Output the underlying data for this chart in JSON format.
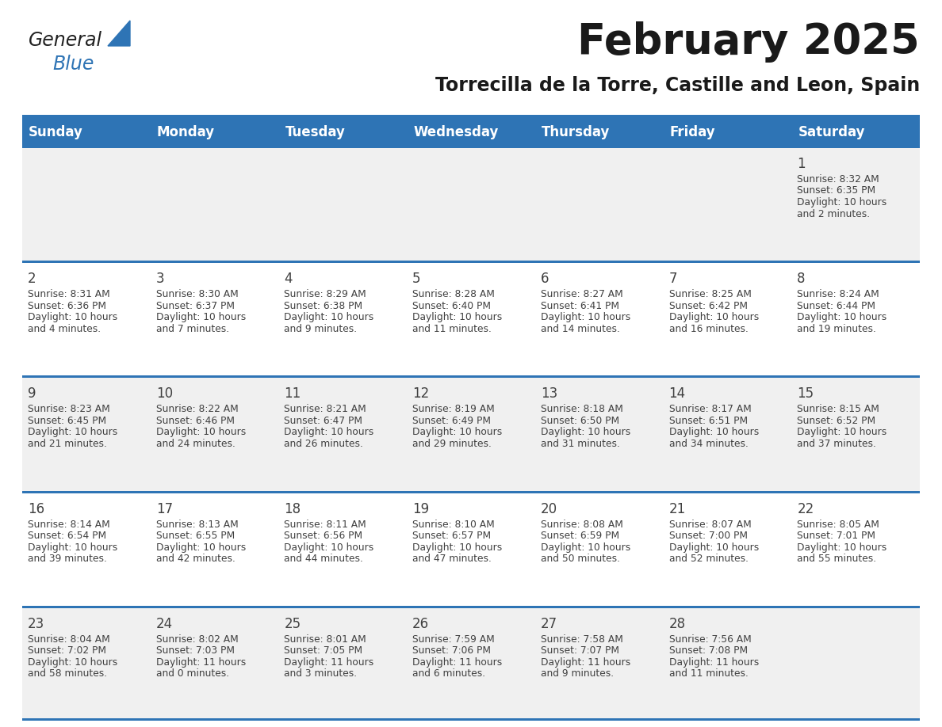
{
  "title": "February 2025",
  "subtitle": "Torrecilla de la Torre, Castille and Leon, Spain",
  "header_bg": "#2E74B5",
  "header_text_color": "#FFFFFF",
  "cell_bg_white": "#FFFFFF",
  "cell_bg_gray": "#F0F0F0",
  "separator_color": "#2E74B5",
  "text_color": "#404040",
  "days_of_week": [
    "Sunday",
    "Monday",
    "Tuesday",
    "Wednesday",
    "Thursday",
    "Friday",
    "Saturday"
  ],
  "row_bg": [
    "#F0F0F0",
    "#FFFFFF",
    "#F0F0F0",
    "#FFFFFF",
    "#F0F0F0"
  ],
  "calendar_data": [
    [
      {
        "day": "",
        "sunrise": "",
        "sunset": "",
        "daylight": ""
      },
      {
        "day": "",
        "sunrise": "",
        "sunset": "",
        "daylight": ""
      },
      {
        "day": "",
        "sunrise": "",
        "sunset": "",
        "daylight": ""
      },
      {
        "day": "",
        "sunrise": "",
        "sunset": "",
        "daylight": ""
      },
      {
        "day": "",
        "sunrise": "",
        "sunset": "",
        "daylight": ""
      },
      {
        "day": "",
        "sunrise": "",
        "sunset": "",
        "daylight": ""
      },
      {
        "day": "1",
        "sunrise": "8:32 AM",
        "sunset": "6:35 PM",
        "daylight": "10 hours\nand 2 minutes."
      }
    ],
    [
      {
        "day": "2",
        "sunrise": "8:31 AM",
        "sunset": "6:36 PM",
        "daylight": "10 hours\nand 4 minutes."
      },
      {
        "day": "3",
        "sunrise": "8:30 AM",
        "sunset": "6:37 PM",
        "daylight": "10 hours\nand 7 minutes."
      },
      {
        "day": "4",
        "sunrise": "8:29 AM",
        "sunset": "6:38 PM",
        "daylight": "10 hours\nand 9 minutes."
      },
      {
        "day": "5",
        "sunrise": "8:28 AM",
        "sunset": "6:40 PM",
        "daylight": "10 hours\nand 11 minutes."
      },
      {
        "day": "6",
        "sunrise": "8:27 AM",
        "sunset": "6:41 PM",
        "daylight": "10 hours\nand 14 minutes."
      },
      {
        "day": "7",
        "sunrise": "8:25 AM",
        "sunset": "6:42 PM",
        "daylight": "10 hours\nand 16 minutes."
      },
      {
        "day": "8",
        "sunrise": "8:24 AM",
        "sunset": "6:44 PM",
        "daylight": "10 hours\nand 19 minutes."
      }
    ],
    [
      {
        "day": "9",
        "sunrise": "8:23 AM",
        "sunset": "6:45 PM",
        "daylight": "10 hours\nand 21 minutes."
      },
      {
        "day": "10",
        "sunrise": "8:22 AM",
        "sunset": "6:46 PM",
        "daylight": "10 hours\nand 24 minutes."
      },
      {
        "day": "11",
        "sunrise": "8:21 AM",
        "sunset": "6:47 PM",
        "daylight": "10 hours\nand 26 minutes."
      },
      {
        "day": "12",
        "sunrise": "8:19 AM",
        "sunset": "6:49 PM",
        "daylight": "10 hours\nand 29 minutes."
      },
      {
        "day": "13",
        "sunrise": "8:18 AM",
        "sunset": "6:50 PM",
        "daylight": "10 hours\nand 31 minutes."
      },
      {
        "day": "14",
        "sunrise": "8:17 AM",
        "sunset": "6:51 PM",
        "daylight": "10 hours\nand 34 minutes."
      },
      {
        "day": "15",
        "sunrise": "8:15 AM",
        "sunset": "6:52 PM",
        "daylight": "10 hours\nand 37 minutes."
      }
    ],
    [
      {
        "day": "16",
        "sunrise": "8:14 AM",
        "sunset": "6:54 PM",
        "daylight": "10 hours\nand 39 minutes."
      },
      {
        "day": "17",
        "sunrise": "8:13 AM",
        "sunset": "6:55 PM",
        "daylight": "10 hours\nand 42 minutes."
      },
      {
        "day": "18",
        "sunrise": "8:11 AM",
        "sunset": "6:56 PM",
        "daylight": "10 hours\nand 44 minutes."
      },
      {
        "day": "19",
        "sunrise": "8:10 AM",
        "sunset": "6:57 PM",
        "daylight": "10 hours\nand 47 minutes."
      },
      {
        "day": "20",
        "sunrise": "8:08 AM",
        "sunset": "6:59 PM",
        "daylight": "10 hours\nand 50 minutes."
      },
      {
        "day": "21",
        "sunrise": "8:07 AM",
        "sunset": "7:00 PM",
        "daylight": "10 hours\nand 52 minutes."
      },
      {
        "day": "22",
        "sunrise": "8:05 AM",
        "sunset": "7:01 PM",
        "daylight": "10 hours\nand 55 minutes."
      }
    ],
    [
      {
        "day": "23",
        "sunrise": "8:04 AM",
        "sunset": "7:02 PM",
        "daylight": "10 hours\nand 58 minutes."
      },
      {
        "day": "24",
        "sunrise": "8:02 AM",
        "sunset": "7:03 PM",
        "daylight": "11 hours\nand 0 minutes."
      },
      {
        "day": "25",
        "sunrise": "8:01 AM",
        "sunset": "7:05 PM",
        "daylight": "11 hours\nand 3 minutes."
      },
      {
        "day": "26",
        "sunrise": "7:59 AM",
        "sunset": "7:06 PM",
        "daylight": "11 hours\nand 6 minutes."
      },
      {
        "day": "27",
        "sunrise": "7:58 AM",
        "sunset": "7:07 PM",
        "daylight": "11 hours\nand 9 minutes."
      },
      {
        "day": "28",
        "sunrise": "7:56 AM",
        "sunset": "7:08 PM",
        "daylight": "11 hours\nand 11 minutes."
      },
      {
        "day": "",
        "sunrise": "",
        "sunset": "",
        "daylight": ""
      }
    ]
  ],
  "logo_text_general": "General",
  "logo_text_blue": "Blue",
  "logo_color_general": "#222222",
  "logo_color_blue": "#2E74B5",
  "logo_triangle_color": "#2E74B5"
}
